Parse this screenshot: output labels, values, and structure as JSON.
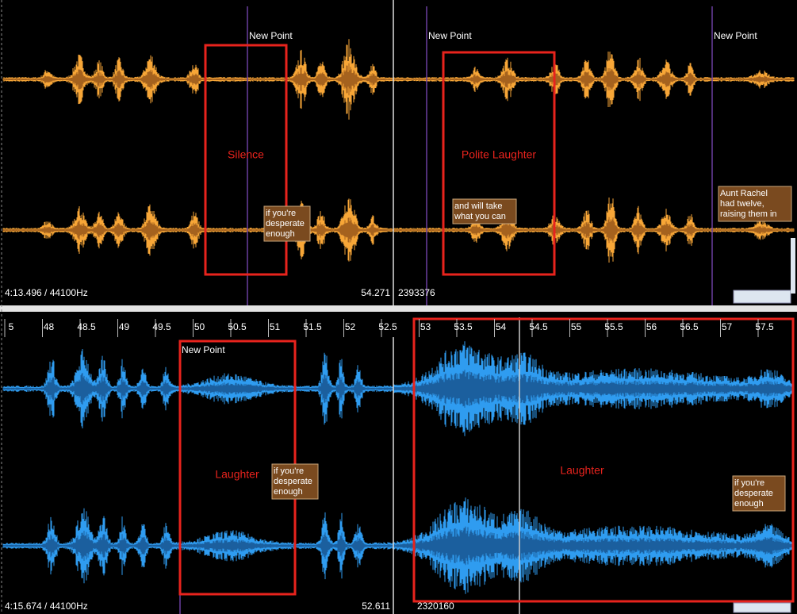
{
  "top_panel": {
    "markers": [
      "New Point",
      "New Point",
      "New Point"
    ],
    "regions": [
      "Silence",
      "Polite Laughter"
    ],
    "captions": [
      {
        "lines": [
          "if you're",
          "desperate",
          "enough"
        ]
      },
      {
        "lines": [
          "and will take",
          "what you can"
        ]
      },
      {
        "lines": [
          "Aunt Rachel",
          "had twelve,",
          "raising them in"
        ]
      }
    ],
    "position": "4:13.496 / 44100Hz",
    "end_time": "54.271",
    "sample": "2393376"
  },
  "bottom_panel": {
    "ruler": [
      "5",
      "48",
      "48.5",
      "49",
      "49.5",
      "50",
      "50.5",
      "51",
      "51.5",
      "52",
      "52.5",
      "53",
      "53.5",
      "54",
      "54.5",
      "55",
      "55.5",
      "56",
      "56.5",
      "57",
      "57.5"
    ],
    "markers": [
      "New Point"
    ],
    "regions": [
      "Laughter",
      "Laughter"
    ],
    "captions": [
      {
        "lines": [
          "if you're",
          "desperate",
          "enough"
        ]
      },
      {
        "lines": [
          "if you're",
          "desperate",
          "enough"
        ]
      }
    ],
    "position": "4:15.674 / 44100Hz",
    "end_time": "52.611",
    "sample": "2320160"
  }
}
